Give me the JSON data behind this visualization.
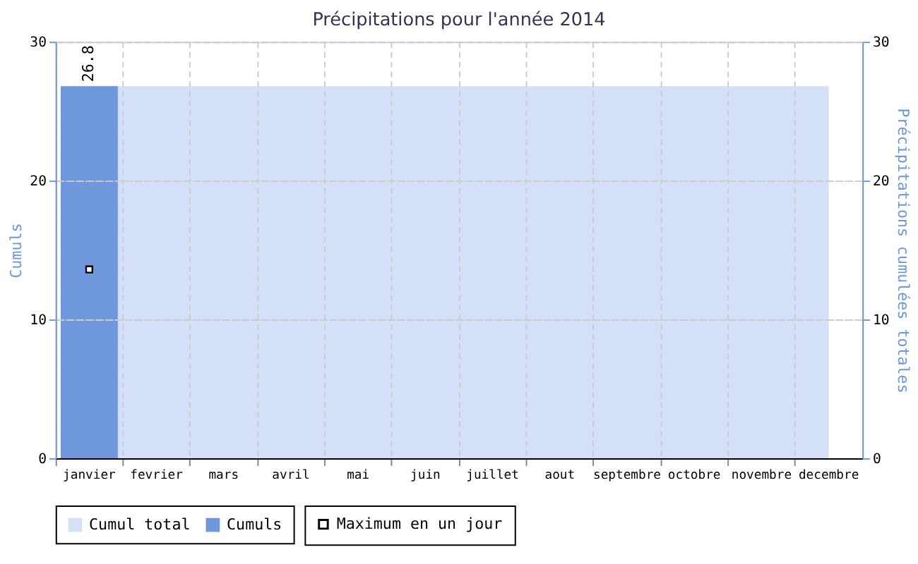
{
  "chart_data": {
    "type": "bar",
    "title": "Précipitations pour l'année 2014",
    "ylabel": "Cumuls",
    "y2label": "Précipitations cumulées totales",
    "categories": [
      "janvier",
      "fevrier",
      "mars",
      "avril",
      "mai",
      "juin",
      "juillet",
      "aout",
      "septembre",
      "octobre",
      "novembre",
      "decembre"
    ],
    "series": [
      {
        "name": "Cumul total",
        "type": "area",
        "axis": "y2",
        "color": "#d3e0f8",
        "values": [
          26.8,
          26.8,
          26.8,
          26.8,
          26.8,
          26.8,
          26.8,
          26.8,
          26.8,
          26.8,
          26.8,
          26.8
        ]
      },
      {
        "name": "Cumuls",
        "color": "#6f98dc",
        "values": [
          26.8,
          null,
          null,
          null,
          null,
          null,
          null,
          null,
          null,
          null,
          null,
          null
        ],
        "value_labels": [
          "26.8",
          null,
          null,
          null,
          null,
          null,
          null,
          null,
          null,
          null,
          null,
          null
        ]
      },
      {
        "name": "Maximum en un jour",
        "type": "scatter",
        "marker": "square",
        "color": "#000000",
        "values": [
          13.6,
          null,
          null,
          null,
          null,
          null,
          null,
          null,
          null,
          null,
          null,
          null
        ]
      }
    ],
    "ylim": [
      0,
      30
    ],
    "yticks": [
      0,
      10,
      20,
      30
    ],
    "y2lim": [
      0,
      30
    ],
    "y2ticks": [
      0,
      10,
      20,
      30
    ],
    "grid": true,
    "legend": "bottom"
  }
}
